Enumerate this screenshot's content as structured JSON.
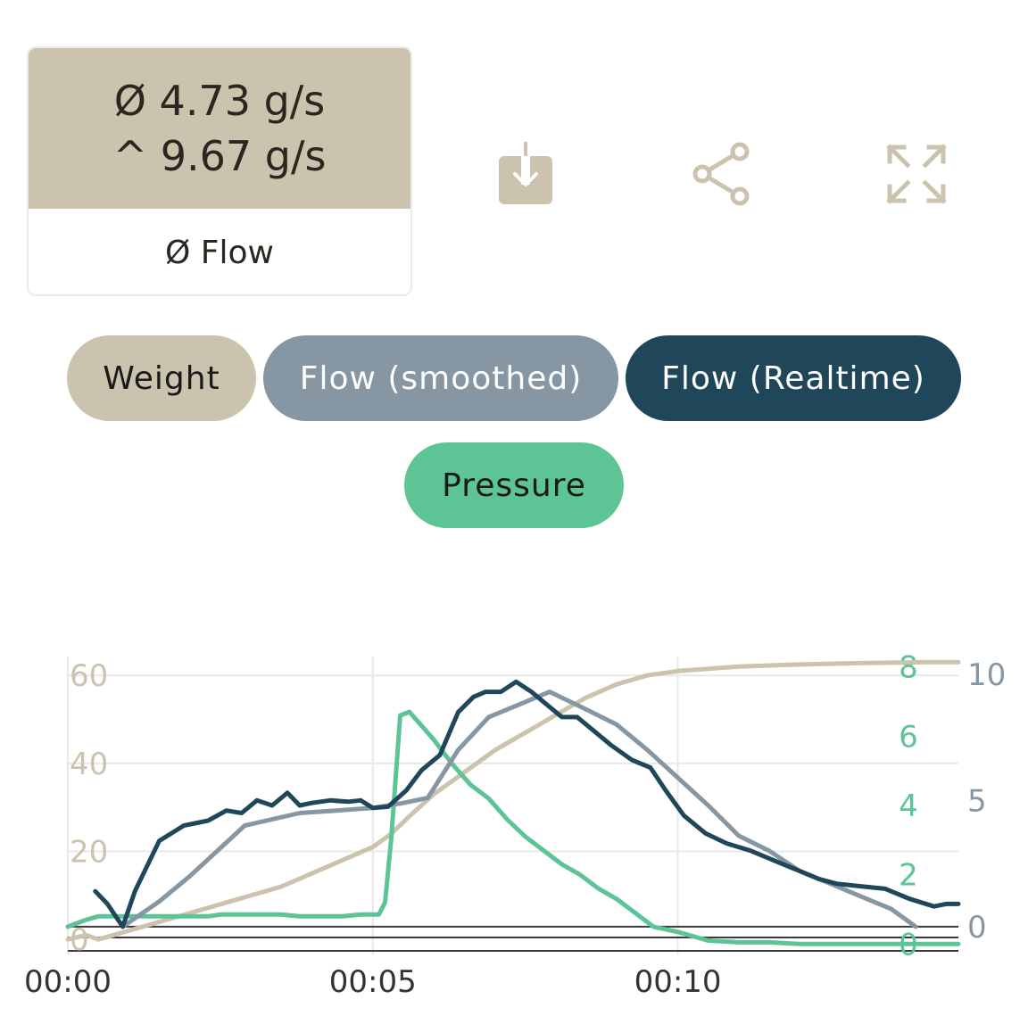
{
  "stats": {
    "avg_value": "Ø 4.73 g/s",
    "max_value": "^ 9.67 g/s",
    "label": "Ø Flow"
  },
  "actions": {
    "download_icon": "download-icon",
    "share_icon": "share-icon",
    "fullscreen_icon": "fullscreen-icon"
  },
  "legend_chips": [
    {
      "label": "Weight",
      "color": "#cbc3ae"
    },
    {
      "label": "Flow (smoothed)",
      "color": "#8697a3"
    },
    {
      "label": "Flow (Realtime)",
      "color": "#20465a"
    },
    {
      "label": "Pressure",
      "color": "#5cc495"
    }
  ],
  "chart_data": {
    "type": "line",
    "x_ticks": [
      "00:00",
      "00:05",
      "00:10"
    ],
    "x_tick_values": [
      0,
      5,
      10
    ],
    "xlim": [
      0,
      14.6
    ],
    "y_axes": {
      "weight": {
        "ticks": [
          "0",
          "20",
          "40",
          "60"
        ],
        "tick_values": [
          0,
          20,
          40,
          60
        ],
        "ylim": [
          -3.4,
          64.3
        ],
        "color": "#cbc3ae"
      },
      "flow": {
        "ticks": [
          "0",
          "5",
          "10"
        ],
        "tick_values": [
          0,
          5,
          10
        ],
        "ylim": [
          -1.1,
          10.7
        ],
        "color": "#8697a3"
      },
      "pressure": {
        "ticks": [
          "0",
          "2",
          "4",
          "6",
          "8"
        ],
        "tick_values": [
          0,
          2,
          4,
          6,
          8
        ],
        "ylim": [
          -0.3,
          8.3
        ],
        "color": "#5cc495"
      }
    },
    "grid": true,
    "series": [
      {
        "name": "Weight",
        "axis": "weight",
        "color": "#cbc3ae",
        "x": [
          0,
          0.3,
          0.5,
          1.0,
          1.5,
          2.0,
          2.5,
          3.0,
          3.5,
          4.0,
          4.5,
          5.0,
          5.3,
          5.6,
          6.0,
          6.5,
          7.0,
          7.5,
          8.0,
          8.5,
          9.0,
          9.5,
          10.0,
          11.0,
          12.0,
          13.0,
          14.0,
          14.6
        ],
        "y": [
          0,
          1,
          0,
          2,
          4,
          6,
          8,
          10,
          12,
          15,
          18,
          21,
          24,
          28,
          33,
          38,
          43,
          47,
          51,
          55,
          58,
          60,
          61,
          62,
          62.5,
          62.8,
          63,
          63
        ]
      },
      {
        "name": "Flow (smoothed)",
        "axis": "flow",
        "color": "#8697a3",
        "x": [
          0.9,
          1.5,
          2.0,
          2.9,
          3.8,
          4.4,
          5.0,
          5.5,
          5.9,
          6.4,
          6.9,
          7.4,
          7.9,
          8.5,
          9.0,
          9.5,
          10.0,
          10.5,
          11.0,
          11.5,
          12.0,
          12.5,
          13.0,
          13.5,
          13.9
        ],
        "y": [
          0,
          1,
          2,
          4,
          4.5,
          4.6,
          4.7,
          4.9,
          5.1,
          7,
          8.3,
          8.8,
          9.3,
          8.6,
          8.0,
          7.0,
          5.9,
          4.8,
          3.6,
          3.0,
          2.2,
          1.7,
          1.2,
          0.7,
          0
        ]
      },
      {
        "name": "Flow (Realtime)",
        "axis": "flow",
        "color": "#20465a",
        "x": [
          0.45,
          0.65,
          0.9,
          1.1,
          1.5,
          1.9,
          2.3,
          2.6,
          2.85,
          3.1,
          3.35,
          3.6,
          3.8,
          4.0,
          4.3,
          4.6,
          4.8,
          5.0,
          5.25,
          5.55,
          5.8,
          6.1,
          6.4,
          6.65,
          6.85,
          7.1,
          7.35,
          7.6,
          7.85,
          8.1,
          8.35,
          8.6,
          8.9,
          9.25,
          9.55,
          9.8,
          10.1,
          10.45,
          10.8,
          11.2,
          11.6,
          12.0,
          12.3,
          12.6,
          13.0,
          13.4,
          13.8,
          14.2,
          14.4,
          14.6
        ],
        "y": [
          1.4,
          0.9,
          0,
          1.4,
          3.4,
          4.0,
          4.2,
          4.6,
          4.5,
          5.0,
          4.8,
          5.3,
          4.8,
          4.9,
          5.0,
          4.95,
          5.0,
          4.7,
          4.75,
          5.4,
          6.2,
          6.8,
          8.5,
          9.1,
          9.3,
          9.3,
          9.7,
          9.3,
          8.8,
          8.3,
          8.3,
          7.8,
          7.2,
          6.6,
          6.3,
          5.4,
          4.4,
          3.7,
          3.3,
          3.0,
          2.6,
          2.2,
          1.9,
          1.7,
          1.6,
          1.5,
          1.1,
          0.8,
          0.9,
          0.9
        ]
      },
      {
        "name": "Pressure",
        "axis": "pressure",
        "color": "#5cc495",
        "x": [
          0,
          0.3,
          0.5,
          0.7,
          1.0,
          1.5,
          2.0,
          2.3,
          2.5,
          3.0,
          3.5,
          3.8,
          4.0,
          4.5,
          4.8,
          5.0,
          5.1,
          5.2,
          5.3,
          5.45,
          5.6,
          5.8,
          6.0,
          6.3,
          6.6,
          6.9,
          7.2,
          7.5,
          7.8,
          8.1,
          8.4,
          8.7,
          9.0,
          9.3,
          9.6,
          10.0,
          10.5,
          11.0,
          11.5,
          12.0,
          13.0,
          14.0,
          14.6
        ],
        "y": [
          0.5,
          0.7,
          0.8,
          0.8,
          0.8,
          0.8,
          0.8,
          0.8,
          0.85,
          0.85,
          0.85,
          0.8,
          0.8,
          0.8,
          0.85,
          0.85,
          0.85,
          1.2,
          3.0,
          6.6,
          6.7,
          6.3,
          5.9,
          5.2,
          4.6,
          4.2,
          3.6,
          3.1,
          2.7,
          2.3,
          2.0,
          1.6,
          1.3,
          0.9,
          0.5,
          0.35,
          0.1,
          0.05,
          0.05,
          0,
          0,
          0,
          0
        ]
      }
    ]
  }
}
